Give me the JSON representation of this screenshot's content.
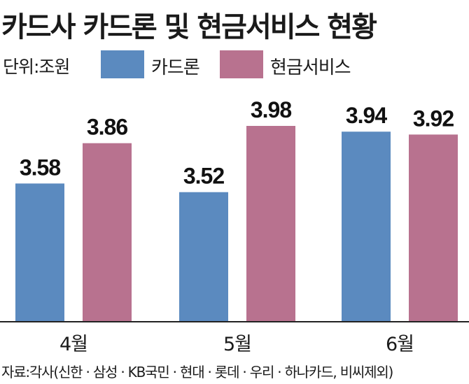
{
  "chart_data": {
    "type": "bar",
    "title": "카드사 카드론 및 현금서비스 현황",
    "unit_label": "단위:조원",
    "categories": [
      "4월",
      "5월",
      "6월"
    ],
    "series": [
      {
        "name": "카드론",
        "values": [
          3.58,
          3.52,
          3.94
        ],
        "labels": [
          "3.58",
          "3.52",
          "3.94"
        ],
        "color": "#5b8abf"
      },
      {
        "name": "현금서비스",
        "values": [
          3.86,
          3.98,
          3.92
        ],
        "labels": [
          "3.86",
          "3.98",
          "3.92"
        ],
        "color": "#b8728f"
      }
    ],
    "ylim": [
      2.62,
      4.15
    ],
    "grid": false,
    "legend": "top",
    "source": "자료:각사(신한 · 삼성 · KB국민 · 현대 · 롯데 · 우리 · 하나카드, 비씨제외)"
  }
}
